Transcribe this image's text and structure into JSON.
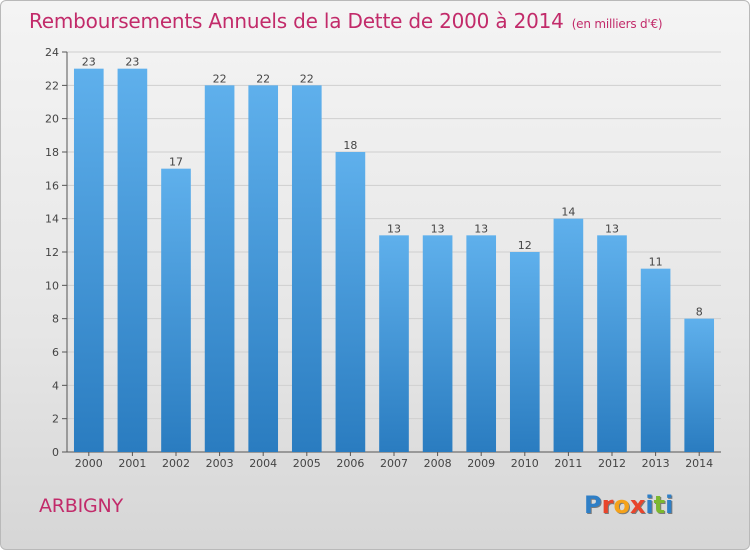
{
  "header": {
    "title": "Remboursements Annuels de la Dette de 2000 à 2014",
    "unit": "(en milliers d'€)"
  },
  "footer": {
    "commune": "ARBIGNY",
    "logo_text": "Proxiti",
    "logo_colors": [
      "#2f7fc6",
      "#e8452c",
      "#f5a21a",
      "#e8452c",
      "#2f7fc6",
      "#7cb82f",
      "#2f7fc6"
    ]
  },
  "colors": {
    "bar_top": "#5fb0ec",
    "bar_bottom": "#2a7cc0",
    "title": "#c22b6a",
    "axis": "#555555",
    "grid": "#cfcfcf"
  },
  "chart_data": {
    "type": "bar",
    "title": "Remboursements Annuels de la Dette de 2000 à 2014",
    "xlabel": "",
    "ylabel": "",
    "categories": [
      "2000",
      "2001",
      "2002",
      "2003",
      "2004",
      "2005",
      "2006",
      "2007",
      "2008",
      "2009",
      "2010",
      "2011",
      "2012",
      "2013",
      "2014"
    ],
    "values": [
      23,
      23,
      17,
      22,
      22,
      22,
      18,
      13,
      13,
      13,
      12,
      14,
      13,
      11,
      8
    ],
    "ylim": [
      0,
      24
    ],
    "yticks": [
      0,
      2,
      4,
      6,
      8,
      10,
      12,
      14,
      16,
      18,
      20,
      22,
      24
    ],
    "grid": true,
    "data_labels": true
  }
}
